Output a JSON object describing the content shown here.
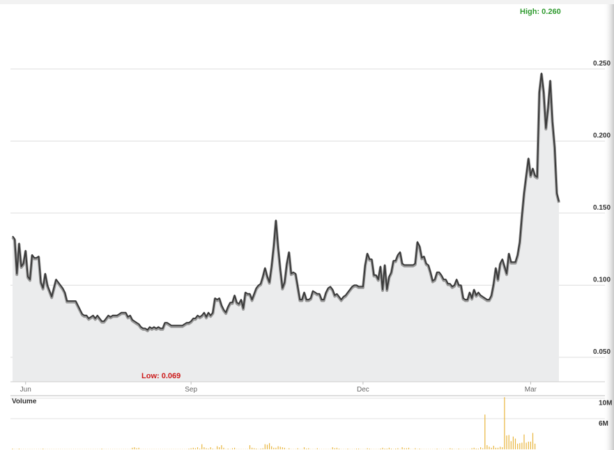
{
  "chart_data": [
    {
      "type": "area",
      "name": "price",
      "ylim": [
        0.033,
        0.294
      ],
      "y_ticks": [
        "0.250",
        "0.200",
        "0.150",
        "0.100",
        "0.050"
      ],
      "y_tick_values": [
        0.25,
        0.2,
        0.15,
        0.1,
        0.05
      ],
      "x_month_labels": [
        "Jun",
        "Sep",
        "Dec",
        "Mar"
      ],
      "x_month_index": [
        6,
        82,
        161,
        238
      ],
      "annotations": {
        "high": "High: 0.260",
        "low": "Low: 0.069"
      },
      "colors": {
        "line": "#3a3a3a",
        "fill": "#ebeced",
        "grid": "#dddddd",
        "high": "#2e9a2e",
        "low": "#cc1a1a"
      },
      "values": [
        0.134,
        0.132,
        0.108,
        0.129,
        0.113,
        0.115,
        0.124,
        0.106,
        0.104,
        0.121,
        0.119,
        0.119,
        0.12,
        0.102,
        0.098,
        0.108,
        0.1,
        0.096,
        0.092,
        0.098,
        0.104,
        0.102,
        0.1,
        0.098,
        0.095,
        0.089,
        0.089,
        0.089,
        0.089,
        0.089,
        0.086,
        0.083,
        0.08,
        0.079,
        0.079,
        0.077,
        0.078,
        0.079,
        0.077,
        0.079,
        0.077,
        0.075,
        0.075,
        0.077,
        0.079,
        0.078,
        0.079,
        0.079,
        0.079,
        0.08,
        0.081,
        0.081,
        0.081,
        0.078,
        0.079,
        0.076,
        0.075,
        0.074,
        0.073,
        0.071,
        0.07,
        0.07,
        0.069,
        0.071,
        0.07,
        0.071,
        0.07,
        0.071,
        0.07,
        0.07,
        0.074,
        0.074,
        0.073,
        0.072,
        0.072,
        0.072,
        0.072,
        0.072,
        0.072,
        0.073,
        0.074,
        0.074,
        0.075,
        0.077,
        0.077,
        0.079,
        0.078,
        0.079,
        0.081,
        0.078,
        0.081,
        0.079,
        0.081,
        0.091,
        0.09,
        0.091,
        0.086,
        0.083,
        0.081,
        0.085,
        0.088,
        0.088,
        0.093,
        0.088,
        0.087,
        0.09,
        0.084,
        0.095,
        0.094,
        0.094,
        0.09,
        0.094,
        0.098,
        0.1,
        0.101,
        0.106,
        0.112,
        0.106,
        0.102,
        0.113,
        0.127,
        0.145,
        0.126,
        0.111,
        0.098,
        0.102,
        0.115,
        0.123,
        0.108,
        0.109,
        0.108,
        0.099,
        0.09,
        0.09,
        0.095,
        0.09,
        0.09,
        0.091,
        0.096,
        0.095,
        0.094,
        0.094,
        0.09,
        0.09,
        0.095,
        0.098,
        0.099,
        0.097,
        0.093,
        0.094,
        0.092,
        0.09,
        0.092,
        0.093,
        0.095,
        0.097,
        0.099,
        0.1,
        0.1,
        0.099,
        0.099,
        0.099,
        0.114,
        0.122,
        0.118,
        0.118,
        0.107,
        0.107,
        0.104,
        0.113,
        0.097,
        0.114,
        0.097,
        0.106,
        0.109,
        0.117,
        0.117,
        0.121,
        0.123,
        0.115,
        0.114,
        0.114,
        0.114,
        0.114,
        0.114,
        0.115,
        0.13,
        0.127,
        0.119,
        0.12,
        0.115,
        0.114,
        0.109,
        0.103,
        0.104,
        0.109,
        0.109,
        0.107,
        0.104,
        0.104,
        0.101,
        0.101,
        0.099,
        0.1,
        0.104,
        0.1,
        0.1,
        0.091,
        0.09,
        0.09,
        0.095,
        0.091,
        0.097,
        0.093,
        0.095,
        0.093,
        0.092,
        0.091,
        0.09,
        0.09,
        0.093,
        0.101,
        0.112,
        0.104,
        0.115,
        0.118,
        0.113,
        0.108,
        0.122,
        0.116,
        0.116,
        0.116,
        0.121,
        0.13,
        0.148,
        0.164,
        0.176,
        0.188,
        0.176,
        0.181,
        0.176,
        0.175,
        0.234,
        0.247,
        0.234,
        0.209,
        0.223,
        0.242,
        0.214,
        0.196,
        0.164,
        0.158
      ]
    },
    {
      "type": "bar",
      "name": "volume",
      "title": "Volume",
      "ylim": [
        0,
        10.5
      ],
      "y_ticks": [
        "10M",
        "6M"
      ],
      "y_tick_values": [
        10,
        6
      ],
      "colors": {
        "bar": "#e8b53c"
      },
      "values": [
        0.1,
        0,
        0,
        0.1,
        0,
        0,
        0,
        0,
        0,
        0,
        0,
        0,
        0,
        0,
        0.1,
        0,
        0,
        0,
        0,
        0,
        0,
        0,
        0,
        0,
        0,
        0,
        0,
        0,
        0,
        0,
        0,
        0,
        0,
        0,
        0,
        0,
        0,
        0,
        0,
        0,
        0,
        0.1,
        0,
        0,
        0,
        0,
        0,
        0,
        0,
        0,
        0,
        0,
        0,
        0,
        0,
        0.3,
        0.4,
        0.2,
        0.3,
        0,
        0,
        0,
        0,
        0,
        0,
        0,
        0,
        0,
        0,
        0,
        0,
        0,
        0,
        0,
        0,
        0,
        0,
        0,
        0,
        0,
        0,
        0.1,
        0.2,
        0.3,
        0.2,
        0.4,
        0.1,
        1,
        0.4,
        0.2,
        0.1,
        0.4,
        0.1,
        0,
        0.6,
        0.4,
        0.8,
        0.3,
        0,
        0.1,
        0,
        0.2,
        0.3,
        0,
        0,
        0,
        0,
        0,
        0,
        0.8,
        0.3,
        0.2,
        0.1,
        0,
        0.1,
        0.2,
        1,
        0.9,
        1.2,
        0.6,
        0.3,
        0.3,
        0.6,
        0.5,
        0.4,
        0.3,
        0,
        0.2,
        0,
        0,
        0,
        0.2,
        0,
        0,
        0.4,
        0.1,
        0.2,
        0,
        0,
        0,
        0.2,
        0,
        0,
        0,
        0,
        0,
        0,
        0.4,
        0.2,
        0.3,
        0.1,
        0,
        0,
        0,
        0.1,
        0,
        0,
        0,
        0.1,
        0.1,
        0,
        0,
        0,
        0.2,
        0.1,
        0,
        0,
        0,
        0,
        0.1,
        0.3,
        0.1,
        0.1,
        0.3,
        0.1,
        0,
        0.1,
        0.2,
        0,
        0.4,
        0.2,
        0.2,
        0.3,
        0,
        0,
        0.2,
        0,
        0.1,
        0,
        0,
        0,
        0,
        0,
        0,
        0,
        0.1,
        0,
        0,
        0,
        0,
        0,
        0.2,
        0.1,
        0,
        0,
        0.1,
        0,
        0,
        0,
        0,
        0,
        0.2,
        0.3,
        0.1,
        0.1,
        0.4,
        0.2,
        6.8,
        0.8,
        0.5,
        0.3,
        0.7,
        0.3,
        0.3,
        0.5,
        0.4,
        10.2,
        2.7,
        2.8,
        1.6,
        2.5,
        2.1,
        1.1,
        1.2,
        1.3,
        2.9,
        1.3,
        1.5,
        1.5,
        3.2,
        1.1
      ]
    }
  ]
}
